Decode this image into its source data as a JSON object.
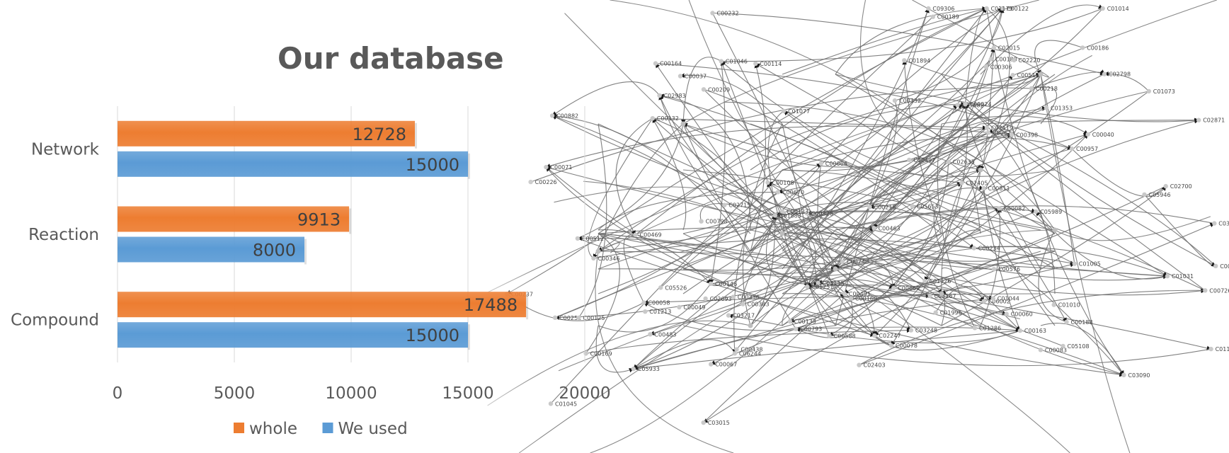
{
  "title": "Our database",
  "chart_data": {
    "type": "bar",
    "orientation": "horizontal",
    "categories": [
      "Network",
      "Reaction",
      "Compound"
    ],
    "series": [
      {
        "name": "whole",
        "color": "#ED7D31",
        "values": [
          12728,
          9913,
          17488
        ]
      },
      {
        "name": "We used",
        "color": "#5B9BD5",
        "values": [
          15000,
          8000,
          15000
        ]
      }
    ],
    "xticks": [
      0,
      5000,
      10000,
      15000,
      20000
    ],
    "xlim": [
      0,
      20000
    ],
    "grid": true,
    "legend": "bottom"
  },
  "network_background": {
    "labels": [
      "C00146",
      "C06002",
      "C01213",
      "C06244",
      "C01883",
      "C03090",
      "C00576",
      "C00670",
      "C00114",
      "C00519",
      "C00588",
      "C00108",
      "C00163",
      "C00383",
      "C00082",
      "C01077",
      "C05682",
      "C00188",
      "C00346",
      "C01996",
      "C03167",
      "C00798",
      "C00469",
      "C00189",
      "C02405",
      "C00673",
      "C03394",
      "C02247",
      "C02015",
      "C00882",
      "C00251",
      "C00512",
      "C00040",
      "C00264",
      "C00232",
      "C01286",
      "C00491",
      "C00306",
      "C00058",
      "C00186",
      "C00122",
      "C00793",
      "C00957",
      "C02403",
      "C00328",
      "C00332",
      "C00060",
      "C00234",
      "C00218",
      "C00132",
      "C02871",
      "C00067",
      "C01044",
      "C02119",
      "C02635",
      "C03248",
      "C00497",
      "C00209",
      "C01031",
      "C00071",
      "C00133",
      "C00164",
      "C03015",
      "C01127",
      "C05946",
      "C01326",
      "C01045",
      "C00237",
      "C00483",
      "C00226",
      "C04115",
      "C05526",
      "C05933",
      "C01353",
      "C02715",
      "C00740",
      "C01073",
      "C02798",
      "C01894",
      "C01251",
      "C01046",
      "C00078",
      "C00669",
      "C02983",
      "C02700",
      "C00133",
      "C00463",
      "C00398",
      "C02693",
      "C09306",
      "C01005",
      "C00188",
      "C00726",
      "C00169",
      "C01010",
      "C00064",
      "C03217",
      "C00438",
      "C05108",
      "C00218",
      "C00125",
      "C00037",
      "C00160",
      "C01179",
      "C00336",
      "C05989",
      "C00811",
      "C05653",
      "C00024",
      "C01014",
      "C02220",
      "C00049",
      "C00083"
    ]
  }
}
